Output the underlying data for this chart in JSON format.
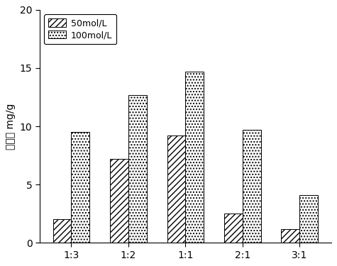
{
  "categories": [
    "1:3",
    "1:2",
    "1:1",
    "2:1",
    "3:1"
  ],
  "series_50": [
    2.0,
    7.2,
    9.2,
    2.5,
    1.2
  ],
  "series_100": [
    9.5,
    12.7,
    14.7,
    9.7,
    4.1
  ],
  "ylabel": "吸附量 mg/g",
  "ylim": [
    0,
    20
  ],
  "yticks": [
    0,
    5,
    10,
    15,
    20
  ],
  "legend_50": "50mol/L",
  "legend_100": "100mol/L",
  "bar_width": 0.32,
  "hatch_50": "////",
  "hatch_100": "....",
  "facecolor_50": "white",
  "facecolor_100": "white",
  "edgecolor": "black",
  "background_color": "white",
  "label_fontsize": 10,
  "tick_fontsize": 10,
  "legend_fontsize": 9
}
